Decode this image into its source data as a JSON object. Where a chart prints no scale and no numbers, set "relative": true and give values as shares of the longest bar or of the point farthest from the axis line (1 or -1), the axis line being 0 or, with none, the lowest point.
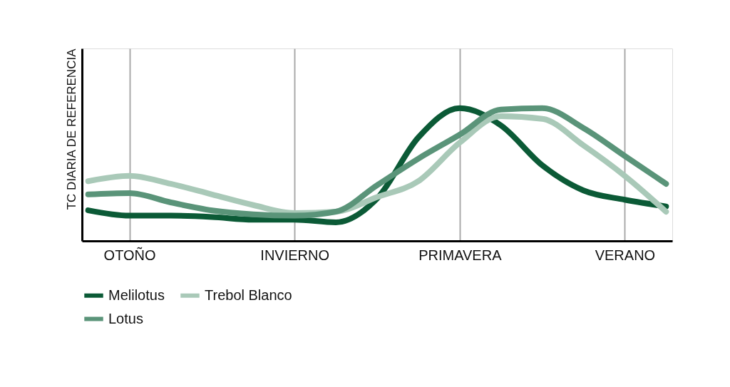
{
  "chart_data": {
    "type": "line",
    "relative": true,
    "ylabel": "TC DIARIA DE REFERENCIA",
    "categories": [
      null,
      "OTOÑO",
      null,
      null,
      null,
      "INVIERNO",
      null,
      null,
      null,
      "PRIMAVERA",
      null,
      null,
      null,
      "VERANO",
      null
    ],
    "grid": "x",
    "legend": "bottom",
    "marker": "none",
    "line_style": "solid",
    "series": [
      {
        "name": "Melilotus",
        "color": "#0b5a36",
        "values": [
          0.23,
          0.19,
          0.19,
          0.18,
          0.16,
          0.16,
          0.14,
          0.32,
          0.78,
          1.0,
          0.87,
          0.57,
          0.38,
          0.31,
          0.26
        ]
      },
      {
        "name": "Trebol Blanco",
        "color": "#a9c9b8",
        "values": [
          0.45,
          0.49,
          0.43,
          0.35,
          0.27,
          0.21,
          0.22,
          0.33,
          0.45,
          0.74,
          0.94,
          0.92,
          0.72,
          0.49,
          0.22
        ]
      },
      {
        "name": "Lotus",
        "color": "#5a9479",
        "values": [
          0.35,
          0.36,
          0.29,
          0.23,
          0.2,
          0.19,
          0.22,
          0.42,
          0.62,
          0.8,
          0.99,
          1.0,
          0.85,
          0.64,
          0.43
        ]
      }
    ]
  }
}
